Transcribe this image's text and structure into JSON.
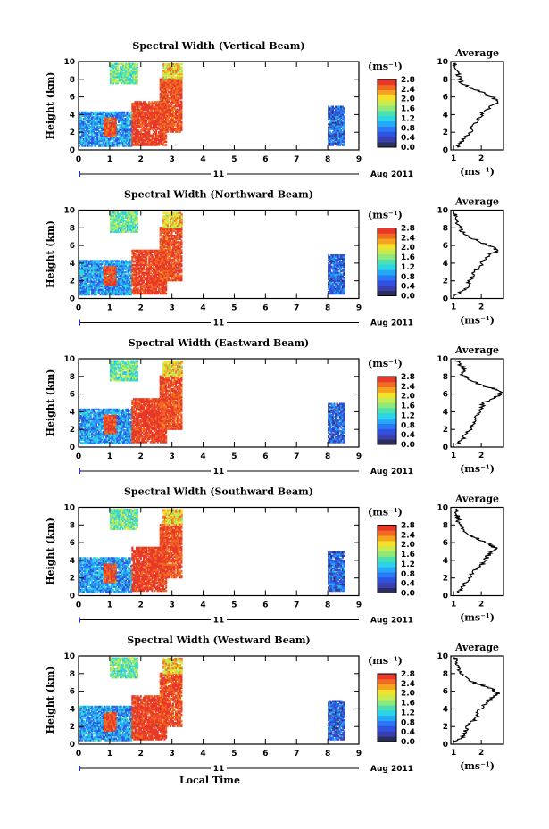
{
  "chart_data": {
    "type": "heatmap",
    "xlabel": "Local Time",
    "date_label": "Aug 2011",
    "day_label": "11",
    "x_ticks": [
      "0",
      "1",
      "2",
      "3",
      "4",
      "5",
      "6",
      "7",
      "8",
      "9"
    ],
    "xlim": [
      0,
      9
    ],
    "ylabel": "Height (km)",
    "y_ticks": [
      "0",
      "2",
      "4",
      "6",
      "8",
      "10"
    ],
    "ylim": [
      0,
      10
    ],
    "colorbar": {
      "unit_label": "(ms⁻¹)",
      "range": [
        0,
        2.8
      ],
      "tick_labels": [
        "0.0",
        "0.4",
        "0.8",
        "1.2",
        "1.6",
        "2.0",
        "2.4",
        "2.8"
      ],
      "colors": [
        "#2b2f5c",
        "#3a3fb0",
        "#2f52e0",
        "#2a78f5",
        "#25a8f5",
        "#2bd4e6",
        "#4ce0b0",
        "#8ee87a",
        "#c6ec52",
        "#f5e02a",
        "#f5a41f",
        "#f06a22",
        "#e8382a"
      ]
    },
    "average_panel": {
      "title": "Average",
      "xlabel": "(ms⁻¹)",
      "x_ticks": [
        "1",
        "2"
      ],
      "xlim": [
        0.9,
        2.8
      ],
      "y_ticks": [
        "0",
        "2",
        "4",
        "6",
        "8",
        "10"
      ],
      "ylim": [
        0,
        10
      ]
    },
    "panels": [
      {
        "title": "Spectral Width (Vertical Beam)",
        "average_profile": {
          "height": [
            0.3,
            0.8,
            1.4,
            2.0,
            2.6,
            3.2,
            3.8,
            4.4,
            5.0,
            5.4,
            5.8,
            6.2,
            6.6,
            7.0,
            7.6,
            8.2,
            8.8,
            9.4,
            9.9
          ],
          "width": [
            1.1,
            1.3,
            1.4,
            1.6,
            1.7,
            1.8,
            2.0,
            2.1,
            2.4,
            2.6,
            2.5,
            2.2,
            2.0,
            1.6,
            1.3,
            1.2,
            1.15,
            1.1,
            1.05
          ]
        }
      },
      {
        "title": "Spectral Width (Northward Beam)",
        "average_profile": {
          "height": [
            0.3,
            0.8,
            1.4,
            2.0,
            2.6,
            3.2,
            3.8,
            4.4,
            5.0,
            5.4,
            5.8,
            6.2,
            6.6,
            7.0,
            7.6,
            8.2,
            8.8,
            9.4,
            9.9
          ],
          "width": [
            1.1,
            1.3,
            1.5,
            1.6,
            1.7,
            1.8,
            2.0,
            2.1,
            2.3,
            2.6,
            2.4,
            2.1,
            1.9,
            1.5,
            1.3,
            1.2,
            1.1,
            1.05,
            1.0
          ]
        }
      },
      {
        "title": "Spectral Width (Eastward Beam)",
        "average_profile": {
          "height": [
            0.3,
            0.8,
            1.4,
            2.0,
            2.6,
            3.2,
            3.8,
            4.4,
            5.0,
            5.4,
            5.8,
            6.2,
            6.6,
            7.0,
            7.6,
            8.2,
            8.8,
            9.4,
            9.9
          ],
          "width": [
            1.1,
            1.3,
            1.4,
            1.6,
            1.7,
            1.8,
            1.9,
            2.0,
            2.1,
            2.3,
            2.6,
            2.7,
            2.5,
            2.0,
            1.6,
            1.3,
            1.4,
            1.2,
            1.1
          ]
        }
      },
      {
        "title": "Spectral Width (Southward Beam)",
        "average_profile": {
          "height": [
            0.3,
            0.8,
            1.4,
            2.0,
            2.6,
            3.2,
            3.8,
            4.4,
            5.0,
            5.4,
            5.8,
            6.2,
            6.6,
            7.0,
            7.6,
            8.2,
            8.8,
            9.4,
            9.9
          ],
          "width": [
            1.1,
            1.3,
            1.4,
            1.6,
            1.7,
            1.9,
            2.1,
            2.2,
            2.4,
            2.5,
            2.3,
            2.0,
            1.8,
            1.5,
            1.3,
            1.2,
            1.15,
            1.1,
            1.05
          ]
        }
      },
      {
        "title": "Spectral Width (Westward Beam)",
        "average_profile": {
          "height": [
            0.3,
            0.8,
            1.4,
            2.0,
            2.6,
            3.2,
            3.8,
            4.4,
            5.0,
            5.4,
            5.8,
            6.2,
            6.6,
            7.0,
            7.6,
            8.2,
            8.8,
            9.4,
            9.9
          ],
          "width": [
            1.1,
            1.3,
            1.4,
            1.5,
            1.7,
            1.8,
            1.9,
            2.1,
            2.3,
            2.5,
            2.6,
            2.4,
            2.1,
            1.7,
            1.4,
            1.2,
            1.15,
            1.1,
            1.0
          ]
        }
      }
    ],
    "data_regions": [
      {
        "t": [
          0.0,
          1.7
        ],
        "h": [
          0.4,
          4.3
        ],
        "level": "low-mid",
        "note_value": 0.9
      },
      {
        "t": [
          0.8,
          1.2
        ],
        "h": [
          1.5,
          3.5
        ],
        "level": "high",
        "note_value": 2.6
      },
      {
        "t": [
          1.7,
          2.8
        ],
        "h": [
          0.5,
          5.5
        ],
        "level": "high",
        "note_value": 2.7
      },
      {
        "t": [
          2.6,
          3.3
        ],
        "h": [
          2.0,
          8.0
        ],
        "level": "high",
        "note_value": 2.6
      },
      {
        "t": [
          1.0,
          1.9
        ],
        "h": [
          7.5,
          9.8
        ],
        "level": "mid",
        "note_value": 1.5
      },
      {
        "t": [
          2.7,
          3.3
        ],
        "h": [
          8.0,
          9.8
        ],
        "level": "mid-high",
        "note_value": 2.1
      },
      {
        "t": [
          8.0,
          8.5
        ],
        "h": [
          0.5,
          5.0
        ],
        "level": "low",
        "note_value": 0.6
      }
    ]
  }
}
